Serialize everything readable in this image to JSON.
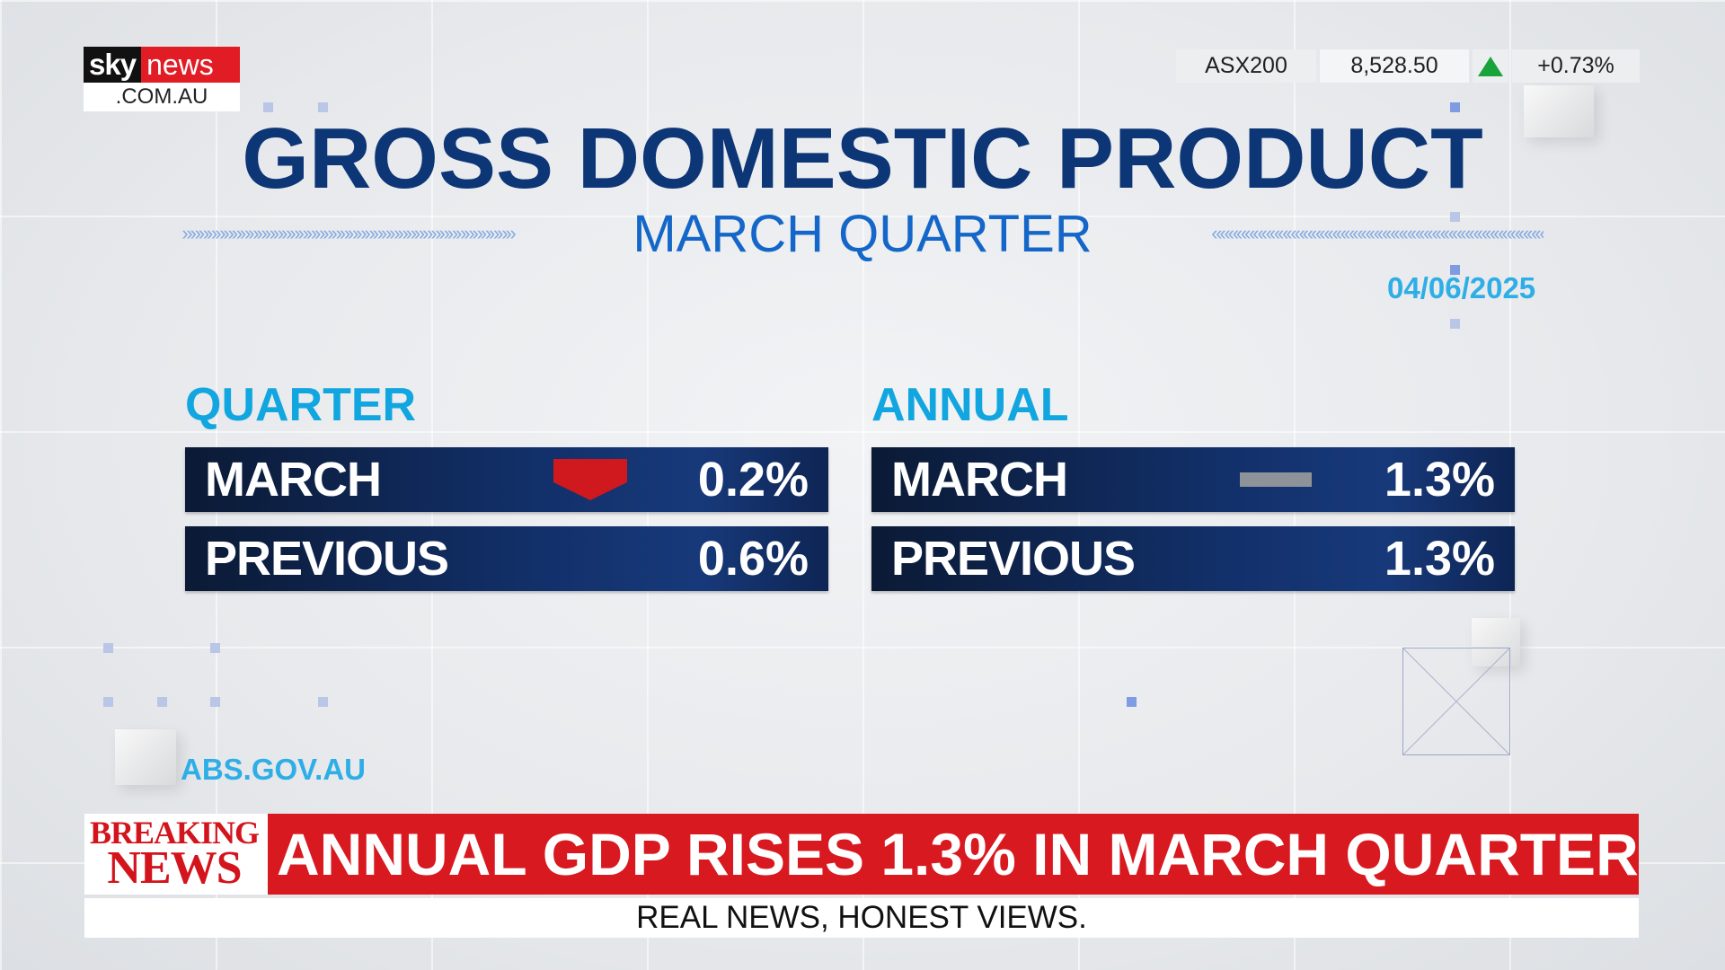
{
  "logo": {
    "brand_sky": "sky",
    "brand_news": "news",
    "domain": ".COM.AU"
  },
  "ticker": {
    "symbol": "ASX200",
    "value": "8,528.50",
    "direction_icon": "up-triangle-icon",
    "change": "+0.73%",
    "up_color": "#1aa33a"
  },
  "header": {
    "title": "GROSS DOMESTIC PRODUCT",
    "subtitle": "MARCH QUARTER",
    "date": "04/06/2025"
  },
  "panels": {
    "quarter": {
      "heading": "QUARTER",
      "rows": [
        {
          "label": "MARCH",
          "value": "0.2%",
          "indicator": "down-arrow-icon"
        },
        {
          "label": "PREVIOUS",
          "value": "0.6%"
        }
      ]
    },
    "annual": {
      "heading": "ANNUAL",
      "rows": [
        {
          "label": "MARCH",
          "value": "1.3%",
          "indicator": "flat-dash-icon"
        },
        {
          "label": "PREVIOUS",
          "value": "1.3%"
        }
      ]
    }
  },
  "source": "ABS.GOV.AU",
  "breaking": {
    "label_line1": "BREAKING",
    "label_line2": "NEWS",
    "headline": "ANNUAL GDP RISES 1.3% IN MARCH QUARTER"
  },
  "tagline": "REAL NEWS, HONEST VIEWS.",
  "colors": {
    "title_navy": "#0d3677",
    "accent_blue": "#2eaee6",
    "breaking_red": "#d81920",
    "down_red": "#d0181f"
  }
}
